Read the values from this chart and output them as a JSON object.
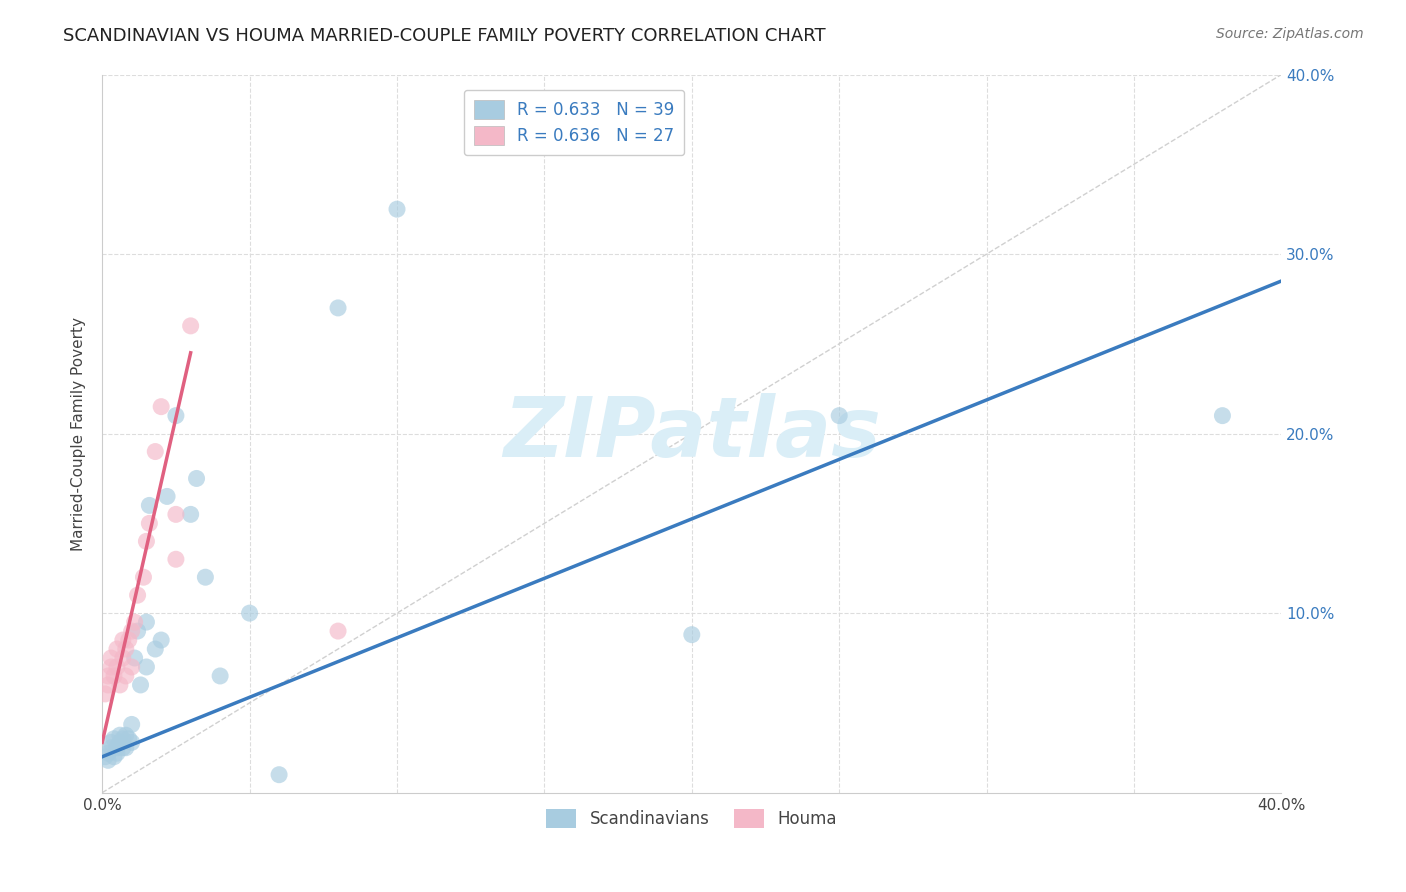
{
  "title": "SCANDINAVIAN VS HOUMA MARRIED-COUPLE FAMILY POVERTY CORRELATION CHART",
  "source": "Source: ZipAtlas.com",
  "ylabel": "Married-Couple Family Poverty",
  "xlim": [
    0.0,
    0.4
  ],
  "ylim": [
    0.0,
    0.4
  ],
  "legend_blue_label": "R = 0.633   N = 39",
  "legend_pink_label": "R = 0.636   N = 27",
  "legend_scand": "Scandinavians",
  "legend_houma": "Houma",
  "blue_color": "#a8cce0",
  "pink_color": "#f4b8c8",
  "blue_line_color": "#3a7bbf",
  "pink_line_color": "#e06080",
  "diagonal_color": "#d0d0d0",
  "background_color": "#ffffff",
  "grid_color": "#dddddd",
  "scandinavians_x": [
    0.001,
    0.002,
    0.002,
    0.003,
    0.003,
    0.004,
    0.004,
    0.005,
    0.005,
    0.006,
    0.006,
    0.007,
    0.007,
    0.008,
    0.008,
    0.009,
    0.01,
    0.01,
    0.011,
    0.012,
    0.013,
    0.015,
    0.015,
    0.016,
    0.018,
    0.02,
    0.022,
    0.025,
    0.03,
    0.032,
    0.035,
    0.04,
    0.05,
    0.06,
    0.08,
    0.1,
    0.2,
    0.25,
    0.38
  ],
  "scandinavians_y": [
    0.02,
    0.018,
    0.022,
    0.025,
    0.028,
    0.02,
    0.03,
    0.022,
    0.025,
    0.028,
    0.032,
    0.025,
    0.03,
    0.025,
    0.032,
    0.03,
    0.038,
    0.028,
    0.075,
    0.09,
    0.06,
    0.07,
    0.095,
    0.16,
    0.08,
    0.085,
    0.165,
    0.21,
    0.155,
    0.175,
    0.12,
    0.065,
    0.1,
    0.01,
    0.27,
    0.325,
    0.088,
    0.21,
    0.21
  ],
  "houma_x": [
    0.001,
    0.002,
    0.002,
    0.003,
    0.003,
    0.004,
    0.005,
    0.005,
    0.006,
    0.007,
    0.007,
    0.008,
    0.008,
    0.009,
    0.01,
    0.01,
    0.011,
    0.012,
    0.014,
    0.015,
    0.016,
    0.018,
    0.02,
    0.025,
    0.025,
    0.03,
    0.08
  ],
  "houma_y": [
    0.055,
    0.06,
    0.065,
    0.07,
    0.075,
    0.065,
    0.07,
    0.08,
    0.06,
    0.075,
    0.085,
    0.065,
    0.08,
    0.085,
    0.07,
    0.09,
    0.095,
    0.11,
    0.12,
    0.14,
    0.15,
    0.19,
    0.215,
    0.13,
    0.155,
    0.26,
    0.09
  ],
  "blue_fit_x": [
    0.0,
    0.4
  ],
  "blue_fit_y": [
    0.02,
    0.285
  ],
  "pink_fit_x": [
    0.0,
    0.03
  ],
  "pink_fit_y": [
    0.028,
    0.245
  ],
  "watermark_text": "ZIPatlas",
  "watermark_color": "#daeef7",
  "title_fontsize": 13,
  "source_fontsize": 10,
  "axis_fontsize": 11,
  "legend_fontsize": 12,
  "marker_size": 150,
  "marker_alpha": 0.65
}
